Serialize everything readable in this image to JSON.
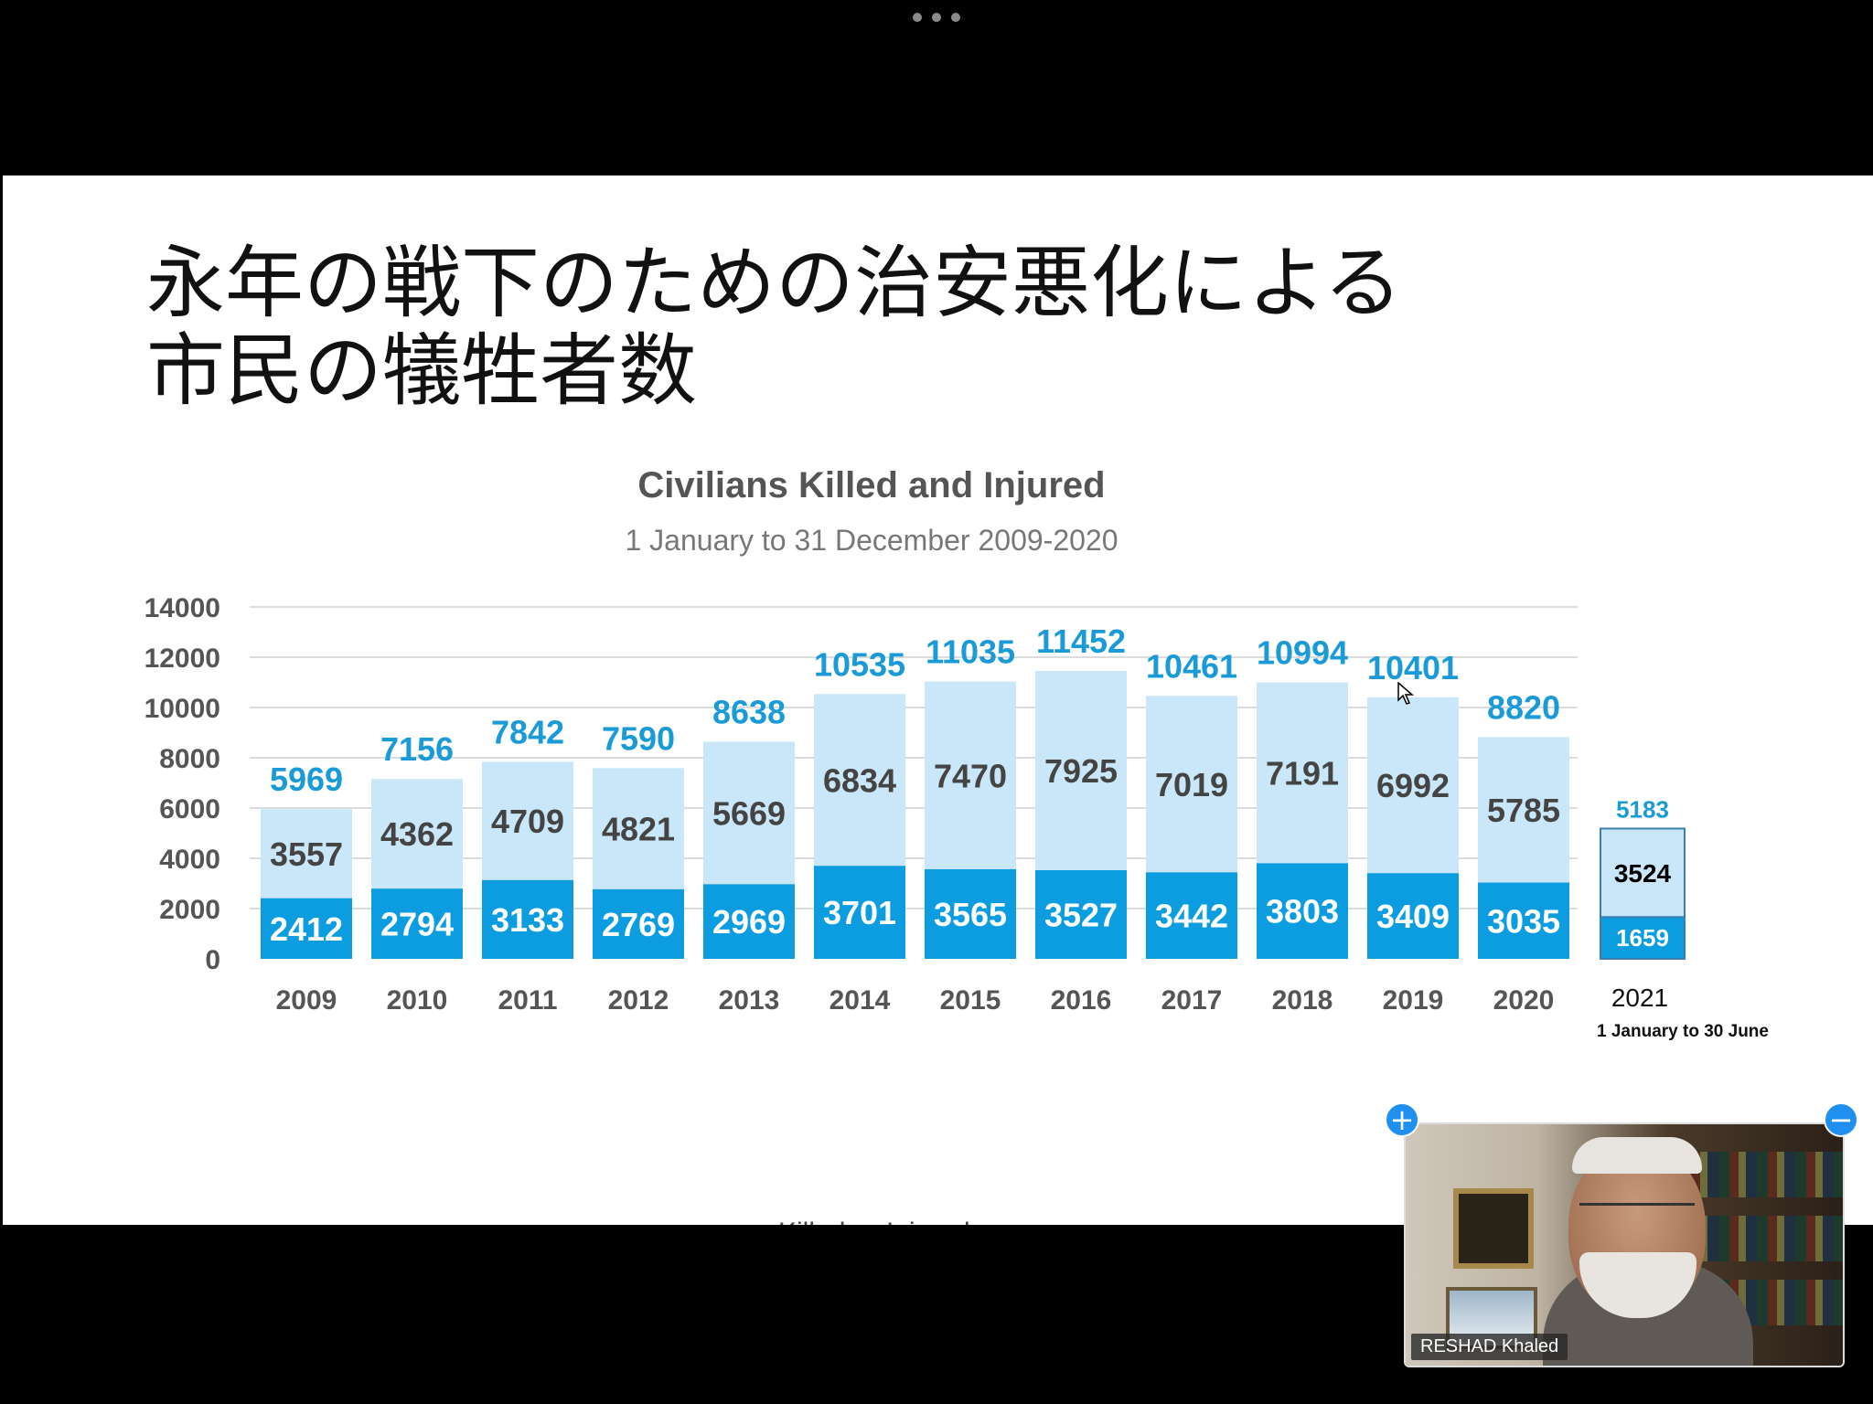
{
  "slide": {
    "title_line1": "永年の戦下のための治安悪化による",
    "title_line2": "市民の犠牲者数"
  },
  "colors": {
    "killed": "#0c9ce0",
    "injured": "#c9e7f8",
    "total_label": "#1a9ad6",
    "grid": "#dcdcdc"
  },
  "chart_data": [
    {
      "type": "bar",
      "stacked": true,
      "title": "Civilians Killed and Injured",
      "subtitle": "1 January to 31 December 2009-2020",
      "categories": [
        "2009",
        "2010",
        "2011",
        "2012",
        "2013",
        "2014",
        "2015",
        "2016",
        "2017",
        "2018",
        "2019",
        "2020"
      ],
      "series": [
        {
          "name": "Killed",
          "values": [
            2412,
            2794,
            3133,
            2769,
            2969,
            3701,
            3565,
            3527,
            3442,
            3803,
            3409,
            3035
          ]
        },
        {
          "name": "Injured",
          "values": [
            3557,
            4362,
            4709,
            4821,
            5669,
            6834,
            7470,
            7925,
            7019,
            7191,
            6992,
            5785
          ]
        }
      ],
      "totals": [
        5969,
        7156,
        7842,
        7590,
        8638,
        10535,
        11035,
        11452,
        10461,
        10994,
        10401,
        8820
      ],
      "ylim": [
        0,
        14000
      ],
      "yticks": [
        0,
        2000,
        4000,
        6000,
        8000,
        10000,
        12000,
        14000
      ],
      "grid": true,
      "legend": "bottom-center"
    },
    {
      "type": "bar",
      "stacked": true,
      "categories": [
        "2021"
      ],
      "category_note": "1 January to 30 June",
      "series": [
        {
          "name": "Killed",
          "values": [
            1659
          ]
        },
        {
          "name": "Injured",
          "values": [
            3524
          ]
        }
      ],
      "totals": [
        5183
      ],
      "ylim": [
        0,
        14000
      ]
    }
  ],
  "video": {
    "participant_name": "RESHAD Khaled",
    "plus_icon": "+",
    "minus_icon": "−"
  }
}
